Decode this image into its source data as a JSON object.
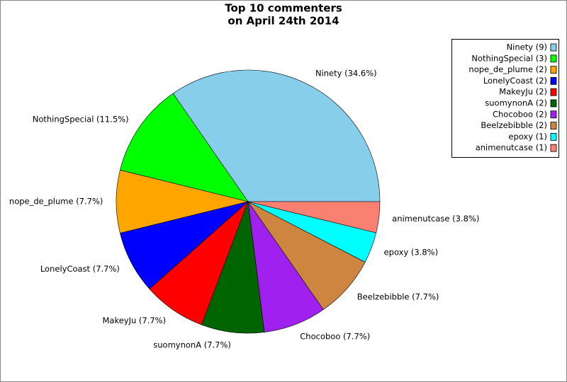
{
  "chart_data": {
    "type": "pie",
    "title": [
      "Top 10 commenters",
      "on April 24th 2014"
    ],
    "values": [
      34.6,
      11.5,
      7.7,
      7.7,
      7.7,
      7.7,
      7.7,
      7.7,
      3.8,
      3.8
    ],
    "value_labels": [
      "Ninety (34.6%)",
      "NothingSpecial (11.5%)",
      "nope_de_plume (7.7%)",
      "LonelyCoast (7.7%)",
      "MakeyJu (7.7%)",
      "suomynonA (7.7%)",
      "Chocoboo (7.7%)",
      "Beelzebibble (7.7%)",
      "epoxy (3.8%)",
      "animenutcase (3.8%)"
    ],
    "legend_labels": [
      "Ninety (9)",
      "NothingSpecial (3)",
      "nope_de_plume (2)",
      "LonelyCoast (2)",
      "MakeyJu (2)",
      "suomynonA (2)",
      "Chocoboo (2)",
      "Beelzebibble (2)",
      "epoxy (1)",
      "animenutcase (1)"
    ],
    "colors": [
      "#87ceeb",
      "#00ff00",
      "#ffa500",
      "#0000ff",
      "#ff0000",
      "#006400",
      "#a020f0",
      "#cd853f",
      "#00ffff",
      "#fa8072"
    ],
    "legend_position": "upper right"
  }
}
